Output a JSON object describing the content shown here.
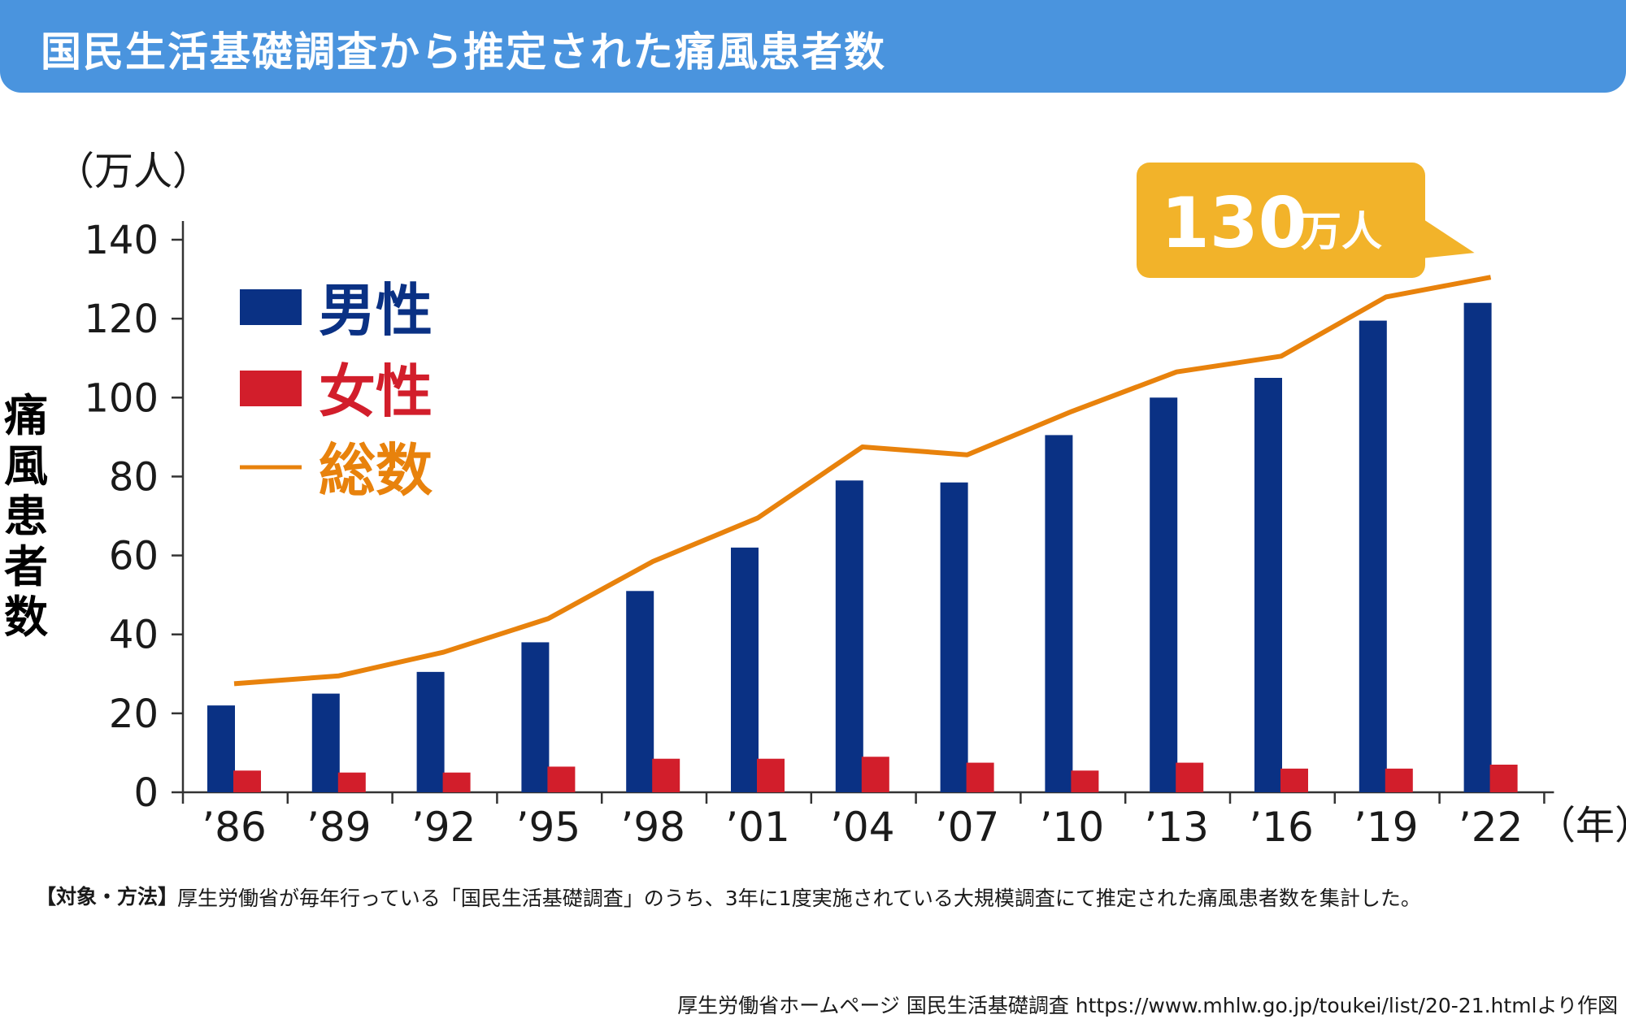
{
  "header": {
    "title": "国民生活基礎調査から推定された痛風患者数"
  },
  "chart_data": {
    "type": "bar",
    "title": "国民生活基礎調査から推定された痛風患者数",
    "ylabel": "痛風患者数",
    "y_unit": "（万人）",
    "x_unit": "（年）",
    "ylim": [
      0,
      140
    ],
    "yticks": [
      "0",
      "20",
      "40",
      "60",
      "80",
      "100",
      "120",
      "140"
    ],
    "categories": [
      "’86",
      "’89",
      "’92",
      "’95",
      "’98",
      "’01",
      "’04",
      "’07",
      "’10",
      "’13",
      "’16",
      "’19",
      "’22"
    ],
    "series": [
      {
        "name": "男性",
        "kind": "bar",
        "color": "#0a3184",
        "values": [
          22,
          25,
          30.5,
          38,
          51,
          62,
          79,
          78.5,
          90.5,
          100,
          105,
          119.5,
          124
        ]
      },
      {
        "name": "女性",
        "kind": "bar",
        "color": "#d21e2b",
        "values": [
          5.5,
          5,
          5,
          6.5,
          8.5,
          8.5,
          9,
          7.5,
          5.5,
          7.5,
          6,
          6,
          7
        ]
      },
      {
        "name": "総数",
        "kind": "line",
        "color": "#e8820c",
        "values": [
          27.5,
          29.5,
          35.5,
          44,
          58.5,
          69.5,
          87.5,
          85.5,
          96.5,
          106.5,
          110.5,
          125.5,
          130.5
        ]
      }
    ],
    "legend_position": "top-left",
    "grid": false,
    "callout": {
      "value": "130",
      "unit": "万人",
      "color": "#f2b32a"
    }
  },
  "note": {
    "label": "【対象・方法】",
    "text": "厚生労働省が毎年行っている「国民生活基礎調査」のうち、3年に1度実施されている大規模調査にて推定された痛風患者数を集計した。"
  },
  "source": "厚生労働省ホームページ 国民生活基礎調査 https://www.mhlw.go.jp/toukei/list/20-21.htmlより作図"
}
